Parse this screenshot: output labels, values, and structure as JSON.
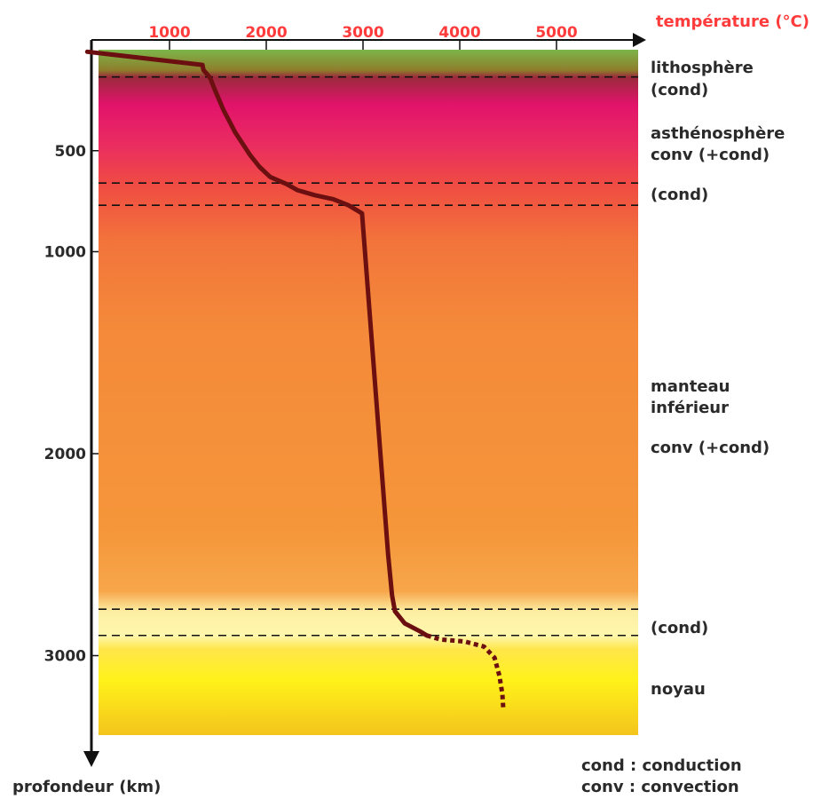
{
  "colors": {
    "temperature_axis": "#ff3b3b",
    "curve": "#6b0f10",
    "text": "#2a2a2a"
  },
  "chart_data": {
    "type": "line",
    "title": "",
    "xlabel": "température (°C)",
    "ylabel": "profondeur (km)",
    "x_axis_position": "top",
    "y_axis_inverted": true,
    "xlim": [
      0,
      5800
    ],
    "ylim": [
      0,
      3400
    ],
    "x_ticks": [
      1000,
      2000,
      3000,
      4000,
      5000
    ],
    "y_ticks": [
      500,
      1000,
      2000,
      3000
    ],
    "series": [
      {
        "style": "solid",
        "x": [
          150,
          1340,
          1350,
          1420,
          1470,
          1560,
          1680,
          1830,
          1930,
          2040,
          2210,
          2320,
          2500,
          2690,
          2850,
          2990,
          3020,
          3100,
          3180,
          3260,
          3300,
          3330,
          3430,
          3590,
          3660
        ],
        "y": [
          10,
          75,
          100,
          140,
          200,
          300,
          410,
          520,
          580,
          630,
          665,
          695,
          720,
          740,
          770,
          810,
          1000,
          1500,
          2000,
          2500,
          2700,
          2780,
          2840,
          2880,
          2900
        ]
      },
      {
        "style": "dotted",
        "x": [
          3660,
          3800,
          4050,
          4250,
          4360,
          4410,
          4440,
          4450
        ],
        "y": [
          2900,
          2920,
          2930,
          2955,
          3010,
          3100,
          3190,
          3260
        ]
      }
    ],
    "layers": [
      {
        "label": "lithosphère",
        "sublabel": "(cond)",
        "top": 0,
        "bottom": 135
      },
      {
        "label": "asthénosphère",
        "sublabel": "conv (+cond)",
        "top": 135,
        "bottom": 660
      },
      {
        "label": "",
        "sublabel": "(cond)",
        "top": 660,
        "bottom": 770
      },
      {
        "label": "manteau\ninférieur",
        "sublabel": "conv (+cond)",
        "top": 770,
        "bottom": 2770
      },
      {
        "label": "",
        "sublabel": "(cond)",
        "top": 2770,
        "bottom": 2900
      },
      {
        "label": "noyau",
        "sublabel": "",
        "top": 2900,
        "bottom": 3400
      }
    ],
    "boundaries": [
      135,
      660,
      770,
      2770,
      2900
    ]
  },
  "labels": {
    "lithosphere": "lithosphère",
    "lithosphere_sub": "(cond)",
    "asthenosphere": "asthénosphère",
    "asthenosphere_sub": "conv (+cond)",
    "transition1_sub": "(cond)",
    "manteau_line1": "manteau",
    "manteau_line2": "inférieur",
    "manteau_sub": "conv (+cond)",
    "transition2_sub": "(cond)",
    "noyau": "noyau"
  },
  "legend": {
    "line1": "cond : conduction",
    "line2": "conv : convection"
  }
}
